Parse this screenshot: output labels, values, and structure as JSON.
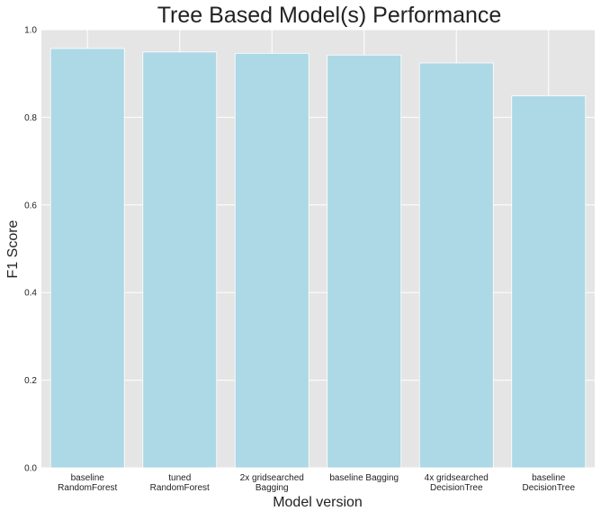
{
  "chart_data": {
    "type": "bar",
    "title": "Tree Based Model(s) Performance",
    "xlabel": "Model version",
    "ylabel": "F1 Score",
    "categories": [
      [
        "baseline",
        "RandomForest"
      ],
      [
        "tuned",
        "RandomForest"
      ],
      [
        "2x gridsearched",
        "Bagging"
      ],
      [
        "baseline Bagging"
      ],
      [
        "4x gridsearched",
        "DecisionTree"
      ],
      [
        "baseline",
        "DecisionTree"
      ]
    ],
    "values": [
      0.957,
      0.949,
      0.946,
      0.942,
      0.924,
      0.849
    ],
    "ylim": [
      0,
      1.0
    ],
    "yticks": [
      "0.0",
      "0.2",
      "0.4",
      "0.6",
      "0.8",
      "1.0"
    ],
    "grid": true,
    "colors": {
      "bar": "#add8e6",
      "plot_background": "#e5e5e5",
      "grid": "#ffffff"
    }
  }
}
